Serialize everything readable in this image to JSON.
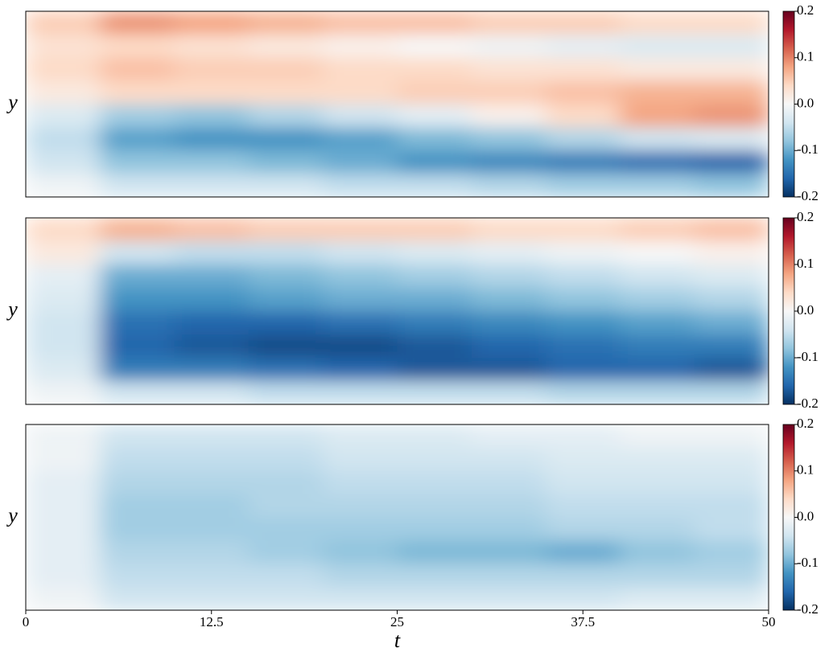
{
  "chart_data": [
    {
      "type": "heatmap",
      "y_label": "y",
      "xlim": [
        0,
        50
      ],
      "zlim": [
        -0.2,
        0.2
      ],
      "zticks": [
        -0.2,
        -0.1,
        {
          "value": 0,
          "label": "0.0"
        },
        0.1,
        0.2
      ],
      "colormap": [
        "#053061",
        "#2166ac",
        "#4393c3",
        "#92c5de",
        "#d1e5f0",
        "#f7f7f7",
        "#fddbc7",
        "#f4a582",
        "#d6604d",
        "#b2182b",
        "#67001f"
      ],
      "z": [
        [
          0.05,
          0.09,
          0.08,
          0.07,
          0.06,
          0.06,
          0.05,
          0.05,
          0.04,
          0.04
        ],
        [
          0.03,
          0.04,
          0.03,
          0.02,
          0.01,
          0.0,
          -0.01,
          -0.02,
          -0.03,
          -0.03
        ],
        [
          0.04,
          0.06,
          0.05,
          0.05,
          0.04,
          0.04,
          0.03,
          0.03,
          0.02,
          0.02
        ],
        [
          0.02,
          0.04,
          0.04,
          0.04,
          0.04,
          0.05,
          0.05,
          0.06,
          0.07,
          0.07
        ],
        [
          -0.03,
          -0.07,
          -0.08,
          -0.06,
          -0.04,
          -0.02,
          0.01,
          0.04,
          0.08,
          0.09
        ],
        [
          -0.05,
          -0.11,
          -0.12,
          -0.12,
          -0.11,
          -0.09,
          -0.08,
          -0.06,
          -0.04,
          -0.03
        ],
        [
          -0.04,
          -0.08,
          -0.08,
          -0.09,
          -0.1,
          -0.12,
          -0.13,
          -0.14,
          -0.15,
          -0.16
        ],
        [
          -0.01,
          -0.04,
          -0.04,
          -0.04,
          -0.05,
          -0.05,
          -0.06,
          -0.07,
          -0.07,
          -0.08
        ]
      ]
    },
    {
      "type": "heatmap",
      "y_label": "y",
      "xlim": [
        0,
        50
      ],
      "zlim": [
        -0.2,
        0.2
      ],
      "zticks": [
        -0.2,
        -0.1,
        {
          "value": 0,
          "label": "0.0"
        },
        0.1,
        0.2
      ],
      "colormap": [
        "#053061",
        "#2166ac",
        "#4393c3",
        "#92c5de",
        "#d1e5f0",
        "#f7f7f7",
        "#fddbc7",
        "#f4a582",
        "#d6604d",
        "#b2182b",
        "#67001f"
      ],
      "z": [
        [
          0.04,
          0.07,
          0.06,
          0.05,
          0.05,
          0.05,
          0.04,
          0.04,
          0.05,
          0.06
        ],
        [
          0.02,
          -0.04,
          -0.05,
          -0.05,
          -0.04,
          -0.03,
          -0.02,
          -0.01,
          0.0,
          0.01
        ],
        [
          -0.02,
          -0.1,
          -0.1,
          -0.09,
          -0.08,
          -0.07,
          -0.06,
          -0.05,
          -0.04,
          -0.03
        ],
        [
          -0.03,
          -0.12,
          -0.12,
          -0.11,
          -0.1,
          -0.1,
          -0.09,
          -0.08,
          -0.07,
          -0.06
        ],
        [
          -0.04,
          -0.15,
          -0.16,
          -0.16,
          -0.15,
          -0.14,
          -0.13,
          -0.12,
          -0.11,
          -0.1
        ],
        [
          -0.04,
          -0.16,
          -0.17,
          -0.18,
          -0.18,
          -0.17,
          -0.16,
          -0.15,
          -0.14,
          -0.14
        ],
        [
          -0.03,
          -0.14,
          -0.14,
          -0.15,
          -0.16,
          -0.17,
          -0.17,
          -0.16,
          -0.16,
          -0.17
        ],
        [
          -0.01,
          -0.04,
          -0.04,
          -0.05,
          -0.05,
          -0.05,
          -0.05,
          -0.06,
          -0.06,
          -0.06
        ]
      ]
    },
    {
      "type": "heatmap",
      "y_label": "y",
      "x_label": "t",
      "xlim": [
        0,
        50
      ],
      "xticks": [
        0,
        12.5,
        25,
        37.5,
        50
      ],
      "zlim": [
        -0.2,
        0.2
      ],
      "zticks": [
        -0.2,
        -0.1,
        {
          "value": 0,
          "label": "0.0"
        },
        0.1,
        0.2
      ],
      "colormap": [
        "#053061",
        "#2166ac",
        "#4393c3",
        "#92c5de",
        "#d1e5f0",
        "#f7f7f7",
        "#fddbc7",
        "#f4a582",
        "#d6604d",
        "#b2182b",
        "#67001f"
      ],
      "z": [
        [
          -0.01,
          -0.04,
          -0.04,
          -0.04,
          -0.03,
          -0.03,
          -0.02,
          -0.02,
          -0.01,
          -0.01
        ],
        [
          -0.01,
          -0.05,
          -0.05,
          -0.05,
          -0.04,
          -0.04,
          -0.04,
          -0.03,
          -0.03,
          -0.03
        ],
        [
          -0.02,
          -0.06,
          -0.06,
          -0.06,
          -0.05,
          -0.05,
          -0.05,
          -0.04,
          -0.04,
          -0.04
        ],
        [
          -0.02,
          -0.07,
          -0.07,
          -0.06,
          -0.06,
          -0.06,
          -0.06,
          -0.05,
          -0.05,
          -0.05
        ],
        [
          -0.02,
          -0.07,
          -0.07,
          -0.07,
          -0.07,
          -0.07,
          -0.07,
          -0.06,
          -0.06,
          -0.05
        ],
        [
          -0.02,
          -0.06,
          -0.06,
          -0.07,
          -0.08,
          -0.09,
          -0.09,
          -0.1,
          -0.08,
          -0.07
        ],
        [
          -0.02,
          -0.05,
          -0.05,
          -0.05,
          -0.06,
          -0.06,
          -0.06,
          -0.06,
          -0.06,
          -0.06
        ],
        [
          -0.01,
          -0.04,
          -0.04,
          -0.04,
          -0.04,
          -0.04,
          -0.04,
          -0.04,
          -0.03,
          -0.03
        ]
      ]
    }
  ]
}
